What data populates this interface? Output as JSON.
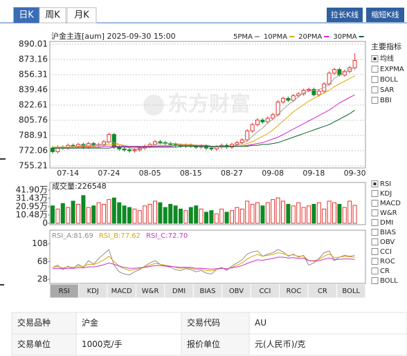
{
  "period_tabs": {
    "items": [
      "日K",
      "周K",
      "月K"
    ],
    "active": 0
  },
  "buttons": [
    "拉长K线",
    "缩短K线"
  ],
  "watermark": "东方财富",
  "chart_data": [
    {
      "type": "candlestick",
      "title": "沪金主连[aum] 2025-09-30 15:00",
      "categories": [
        null,
        null,
        null,
        "07-14",
        null,
        null,
        null,
        null,
        null,
        null,
        null,
        "07-24",
        null,
        null,
        null,
        null,
        null,
        null,
        null,
        "08-05",
        null,
        null,
        null,
        null,
        null,
        null,
        null,
        "08-15",
        null,
        null,
        null,
        null,
        null,
        null,
        null,
        "08-27",
        null,
        null,
        null,
        null,
        null,
        null,
        null,
        "09-08",
        null,
        null,
        null,
        null,
        null,
        null,
        null,
        "09-18",
        null,
        null,
        null,
        null,
        null,
        null,
        null,
        "09-30"
      ],
      "open": [
        775,
        771,
        776,
        775,
        778,
        777,
        779,
        776,
        780,
        778,
        779,
        782,
        790,
        776,
        774,
        773,
        772,
        773,
        775,
        777,
        779,
        782,
        781,
        780,
        779,
        778,
        777,
        778,
        777,
        776,
        777,
        775,
        774,
        776,
        778,
        776,
        779,
        781,
        784,
        794,
        801,
        806,
        804,
        808,
        812,
        826,
        830,
        828,
        833,
        835,
        839,
        840,
        834,
        838,
        846,
        858,
        862,
        856,
        860,
        864
      ],
      "high": [
        777,
        778,
        778,
        780,
        780,
        781,
        781,
        782,
        782,
        781,
        784,
        792,
        792,
        778,
        776,
        775,
        775,
        777,
        779,
        781,
        784,
        784,
        783,
        782,
        781,
        780,
        780,
        780,
        779,
        779,
        779,
        777,
        778,
        780,
        780,
        781,
        783,
        786,
        796,
        803,
        808,
        808,
        810,
        814,
        828,
        832,
        832,
        835,
        837,
        841,
        842,
        842,
        840,
        848,
        860,
        864,
        864,
        862,
        866,
        880
      ],
      "low": [
        769,
        769,
        773,
        773,
        775,
        775,
        774,
        774,
        776,
        776,
        777,
        780,
        774,
        772,
        771,
        770,
        770,
        771,
        773,
        775,
        777,
        779,
        778,
        777,
        776,
        775,
        775,
        775,
        774,
        774,
        773,
        772,
        772,
        774,
        774,
        774,
        777,
        779,
        782,
        792,
        799,
        802,
        802,
        806,
        810,
        824,
        826,
        826,
        831,
        833,
        837,
        832,
        832,
        836,
        844,
        856,
        854,
        854,
        858,
        862
      ],
      "close": [
        771,
        776,
        775,
        778,
        777,
        779,
        776,
        780,
        778,
        779,
        782,
        790,
        776,
        774,
        773,
        772,
        773,
        775,
        777,
        779,
        782,
        781,
        780,
        779,
        778,
        777,
        778,
        777,
        776,
        777,
        775,
        774,
        776,
        778,
        776,
        779,
        781,
        784,
        794,
        801,
        806,
        804,
        808,
        812,
        826,
        830,
        828,
        833,
        835,
        839,
        840,
        834,
        838,
        846,
        858,
        862,
        856,
        860,
        864,
        872
      ],
      "up_color": "#e3302c",
      "down_color": "#0e8a24",
      "series": [
        {
          "name": "5PMA",
          "color": "#a0a0a0",
          "values": [
            776,
            776,
            775,
            776,
            777,
            777,
            778,
            778,
            778,
            779,
            779,
            782,
            781,
            779,
            777,
            775,
            774,
            774,
            775,
            777,
            779,
            780,
            780,
            780,
            780,
            779,
            778,
            778,
            777,
            777,
            777,
            776,
            776,
            776,
            776,
            777,
            778,
            780,
            783,
            788,
            793,
            797,
            803,
            807,
            812,
            818,
            823,
            827,
            832,
            836,
            838,
            839,
            840,
            842,
            846,
            852,
            856,
            859,
            862,
            864
          ]
        },
        {
          "name": "10PMA",
          "color": "#e0a800",
          "values": [
            776,
            776,
            776,
            776,
            776,
            777,
            777,
            777,
            777,
            778,
            778,
            779,
            779,
            779,
            778,
            777,
            777,
            776,
            776,
            776,
            777,
            778,
            778,
            778,
            778,
            779,
            779,
            779,
            778,
            778,
            778,
            777,
            777,
            777,
            777,
            777,
            777,
            778,
            780,
            782,
            785,
            788,
            791,
            795,
            800,
            805,
            810,
            815,
            819,
            823,
            827,
            830,
            833,
            836,
            839,
            843,
            846,
            849,
            852,
            855
          ]
        },
        {
          "name": "20PMA",
          "color": "#d820d8",
          "values": [
            775,
            775,
            775,
            775,
            775,
            776,
            776,
            776,
            776,
            776,
            777,
            777,
            777,
            777,
            777,
            777,
            777,
            777,
            777,
            777,
            777,
            777,
            777,
            777,
            778,
            778,
            778,
            778,
            778,
            778,
            778,
            777,
            777,
            777,
            777,
            777,
            777,
            777,
            778,
            779,
            780,
            781,
            783,
            785,
            787,
            790,
            793,
            796,
            799,
            802,
            805,
            808,
            811,
            814,
            817,
            821,
            825,
            828,
            831,
            834
          ]
        },
        {
          "name": "30PMA",
          "color": "#0b5e28",
          "values": [
            775,
            775,
            775,
            775,
            775,
            775,
            775,
            775,
            775,
            775,
            775,
            775,
            776,
            776,
            776,
            776,
            776,
            776,
            776,
            776,
            776,
            776,
            776,
            776,
            776,
            777,
            777,
            777,
            777,
            777,
            777,
            777,
            777,
            777,
            777,
            777,
            777,
            777,
            777,
            778,
            778,
            779,
            779,
            780,
            781,
            783,
            785,
            787,
            789,
            791,
            793,
            795,
            797,
            799,
            801,
            804,
            807,
            810,
            813,
            817
          ]
        }
      ],
      "ylim": [
        755.21,
        890.01
      ],
      "yticks": [
        755.21,
        772.06,
        788.91,
        805.76,
        822.61,
        839.46,
        856.31,
        873.16,
        890.01
      ],
      "grid": true
    },
    {
      "type": "bar",
      "title": "成交量:226548",
      "values": [
        22,
        18,
        25,
        20,
        28,
        24,
        35,
        20,
        22,
        26,
        24,
        30,
        32,
        26,
        22,
        20,
        18,
        16,
        22,
        24,
        28,
        26,
        20,
        24,
        22,
        18,
        16,
        20,
        22,
        18,
        14,
        16,
        12,
        18,
        14,
        16,
        20,
        18,
        28,
        24,
        26,
        22,
        26,
        30,
        32,
        28,
        24,
        22,
        26,
        20,
        22,
        24,
        26,
        18,
        28,
        26,
        24,
        20,
        28,
        22.6548
      ],
      "ylim": [
        0,
        41.9
      ],
      "yticks": [
        0,
        {
          "value": 10.48,
          "label": "10.48万"
        },
        {
          "value": 20.95,
          "label": "20.95万"
        },
        {
          "value": 31.43,
          "label": "31.43万"
        },
        {
          "value": 41.9,
          "label": "41.90万"
        }
      ],
      "grid": false
    },
    {
      "type": "line",
      "legend_labels": [
        "RSI_A:81.69",
        "RSI_B:77.62",
        "RSI_C:72.70"
      ],
      "series": [
        {
          "name": "RSI_A",
          "color": "#8c8c8c",
          "values": [
            55,
            60,
            50,
            58,
            52,
            62,
            55,
            70,
            62,
            75,
            85,
            95,
            60,
            45,
            40,
            38,
            45,
            50,
            58,
            65,
            70,
            62,
            58,
            55,
            50,
            48,
            52,
            50,
            45,
            48,
            42,
            40,
            50,
            55,
            48,
            58,
            65,
            72,
            85,
            90,
            92,
            80,
            85,
            88,
            95,
            90,
            80,
            85,
            78,
            82,
            60,
            65,
            75,
            88,
            92,
            70,
            78,
            82,
            80,
            81.69
          ]
        },
        {
          "name": "RSI_B",
          "color": "#d9a600",
          "values": [
            55,
            57,
            54,
            56,
            55,
            58,
            57,
            62,
            61,
            66,
            72,
            80,
            68,
            58,
            52,
            48,
            50,
            52,
            56,
            60,
            64,
            62,
            60,
            58,
            55,
            53,
            54,
            53,
            50,
            51,
            48,
            47,
            50,
            53,
            51,
            55,
            60,
            65,
            74,
            80,
            84,
            80,
            82,
            84,
            88,
            86,
            82,
            83,
            80,
            81,
            70,
            70,
            73,
            80,
            85,
            77,
            78,
            80,
            79,
            77.62
          ]
        },
        {
          "name": "RSI_C",
          "color": "#cc2ccc",
          "values": [
            52,
            53,
            52,
            53,
            53,
            54,
            54,
            56,
            56,
            58,
            61,
            65,
            62,
            58,
            55,
            53,
            53,
            54,
            55,
            57,
            59,
            59,
            58,
            57,
            56,
            55,
            55,
            55,
            53,
            53,
            52,
            51,
            52,
            53,
            52,
            54,
            56,
            59,
            64,
            68,
            72,
            71,
            73,
            75,
            78,
            78,
            76,
            77,
            75,
            76,
            70,
            69,
            70,
            73,
            76,
            73,
            73,
            74,
            74,
            72.7
          ]
        }
      ],
      "ylim": [
        22,
        120
      ],
      "yticks": [
        28,
        68,
        108
      ],
      "grid": false
    }
  ],
  "main_indicators": {
    "title": "主要指标",
    "items": [
      "均线",
      "EXPMA",
      "BOLL",
      "SAR",
      "BBI"
    ],
    "checked": 0
  },
  "sub_indicators": {
    "items": [
      "RSI",
      "KDJ",
      "MACD",
      "W&R",
      "DMI",
      "BIAS",
      "OBV",
      "CCI",
      "ROC",
      "CR",
      "BOLL"
    ],
    "checked": 0
  },
  "indicator_tabs": {
    "items": [
      "RSI",
      "KDJ",
      "MACD",
      "W&R",
      "DMI",
      "BIAS",
      "OBV",
      "CCI",
      "ROC",
      "CR",
      "BOLL"
    ],
    "active": 0
  },
  "table": {
    "rows": [
      [
        "交易品种",
        "沪金",
        "交易代码",
        "AU"
      ],
      [
        "交易单位",
        "1000克/手",
        "报价单位",
        "元(人民币)/克"
      ]
    ]
  }
}
